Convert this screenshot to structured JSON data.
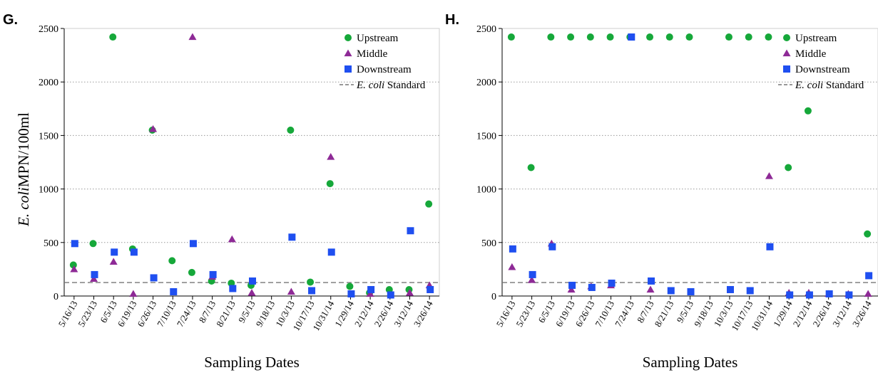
{
  "figure": {
    "ylabel_italic": "E. coli",
    "ylabel_rest": "MPN/100ml"
  },
  "chart_data": [
    {
      "panel_label": "G.",
      "type": "scatter",
      "xlabel": "Sampling Dates",
      "ylabel": "E. coli MPN/100ml",
      "ylim": [
        0,
        2500
      ],
      "yticks": [
        "0",
        "500",
        "1000",
        "1500",
        "2000",
        "2500"
      ],
      "grid": "horizontal dotted",
      "legend_position": "top-right",
      "categories": [
        "5/16/13",
        "5/23/13",
        "6/5/13",
        "6/19/13",
        "6/26/13",
        "7/10/13",
        "7/24/13",
        "8/7/13",
        "8/21/13",
        "9/5/13",
        "9/18/13",
        "10/3/13",
        "10/17/13",
        "10/31/14",
        "1/29/14",
        "2/12/14",
        "2/26/14",
        "3/12/14",
        "3/26/14"
      ],
      "series": [
        {
          "name": "Upstream",
          "marker": "circle",
          "color": "#16a83a",
          "values": [
            290,
            490,
            2420,
            440,
            1550,
            330,
            220,
            140,
            120,
            100,
            null,
            1550,
            130,
            1050,
            90,
            30,
            60,
            60,
            860
          ]
        },
        {
          "name": "Middle",
          "marker": "triangle",
          "color": "#8e2a96",
          "values": [
            250,
            160,
            320,
            20,
            1560,
            null,
            2420,
            180,
            530,
            30,
            null,
            40,
            null,
            1300,
            null,
            20,
            null,
            30,
            100
          ]
        },
        {
          "name": "Downstream",
          "marker": "square",
          "color": "#1f4ff0",
          "values": [
            490,
            200,
            410,
            410,
            170,
            40,
            490,
            200,
            70,
            140,
            null,
            550,
            50,
            410,
            20,
            60,
            10,
            610,
            60
          ]
        }
      ],
      "standard_line": {
        "name_italic": "E. coli",
        "name_rest": " Standard",
        "value": 126,
        "style": "dashed",
        "color": "#777777"
      }
    },
    {
      "panel_label": "H.",
      "type": "scatter",
      "xlabel": "Sampling Dates",
      "ylabel": "",
      "ylim": [
        0,
        2500
      ],
      "yticks": [
        "0",
        "500",
        "1000",
        "1500",
        "2000",
        "2500"
      ],
      "grid": "horizontal dotted",
      "legend_position": "top-right",
      "categories": [
        "5/16/13",
        "5/23/13",
        "6/5/13",
        "6/19/13",
        "6/26/13",
        "7/10/13",
        "7/24/13",
        "8/7/13",
        "8/21/13",
        "9/5/13",
        "9/18/13",
        "10/3/13",
        "10/17/13",
        "10/31/14",
        "1/29/14",
        "2/12/14",
        "2/26/14",
        "3/12/14",
        "3/26/14"
      ],
      "series": [
        {
          "name": "Upstream",
          "marker": "circle",
          "color": "#16a83a",
          "values": [
            2420,
            1200,
            2420,
            2420,
            2420,
            2420,
            2420,
            2420,
            2420,
            2420,
            null,
            2420,
            2420,
            2420,
            1200,
            1730,
            null,
            null,
            580
          ]
        },
        {
          "name": "Middle",
          "marker": "triangle",
          "color": "#8e2a96",
          "values": [
            270,
            150,
            490,
            60,
            90,
            100,
            null,
            60,
            null,
            null,
            null,
            null,
            null,
            1120,
            30,
            30,
            20,
            20,
            20
          ]
        },
        {
          "name": "Downstream",
          "marker": "square",
          "color": "#1f4ff0",
          "values": [
            440,
            200,
            460,
            100,
            80,
            120,
            2420,
            140,
            50,
            40,
            null,
            60,
            50,
            460,
            10,
            10,
            20,
            10,
            190
          ]
        }
      ],
      "standard_line": {
        "name_italic": "E. coli",
        "name_rest": " Standard",
        "value": 126,
        "style": "dashed",
        "color": "#777777"
      }
    }
  ]
}
